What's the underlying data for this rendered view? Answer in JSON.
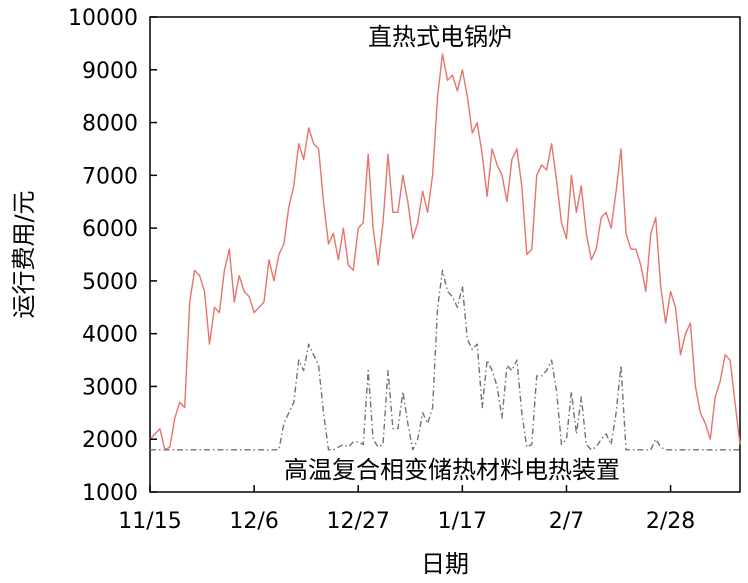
{
  "chart_data": {
    "type": "line",
    "xlabel": "日期",
    "ylabel": "运行费用/元",
    "ylim": [
      1000,
      10000
    ],
    "yticks": [
      1000,
      2000,
      3000,
      4000,
      5000,
      6000,
      7000,
      8000,
      9000,
      10000
    ],
    "xticks": [
      {
        "day": 0,
        "label": "11/15"
      },
      {
        "day": 21,
        "label": "12/6"
      },
      {
        "day": 42,
        "label": "12/27"
      },
      {
        "day": 63,
        "label": "1/17"
      },
      {
        "day": 84,
        "label": "2/7"
      },
      {
        "day": 105,
        "label": "2/28"
      }
    ],
    "xlim": [
      0,
      119
    ],
    "grid": false,
    "annotations": [
      {
        "text": "直热式电锅炉",
        "series": 0
      },
      {
        "text": "高温复合相变储热材料电热装置",
        "series": 1
      }
    ],
    "series": [
      {
        "name": "直热式电锅炉",
        "color": "#e8736c",
        "dash": "solid",
        "x": [
          0,
          1,
          2,
          3,
          4,
          5,
          6,
          7,
          8,
          9,
          10,
          11,
          12,
          13,
          14,
          15,
          16,
          17,
          18,
          19,
          20,
          21,
          22,
          23,
          24,
          25,
          26,
          27,
          28,
          29,
          30,
          31,
          32,
          33,
          34,
          35,
          36,
          37,
          38,
          39,
          40,
          41,
          42,
          43,
          44,
          45,
          46,
          47,
          48,
          49,
          50,
          51,
          52,
          53,
          54,
          55,
          56,
          57,
          58,
          59,
          60,
          61,
          62,
          63,
          64,
          65,
          66,
          67,
          68,
          69,
          70,
          71,
          72,
          73,
          74,
          75,
          76,
          77,
          78,
          79,
          80,
          81,
          82,
          83,
          84,
          85,
          86,
          87,
          88,
          89,
          90,
          91,
          92,
          93,
          94,
          95,
          96,
          97,
          98,
          99,
          100,
          101,
          102,
          103,
          104,
          105,
          106,
          107,
          108,
          109,
          110,
          111,
          112,
          113,
          114,
          115,
          116,
          117,
          118,
          119
        ],
        "values": [
          2000,
          2100,
          2200,
          1800,
          1850,
          2400,
          2700,
          2600,
          4600,
          5200,
          5100,
          4800,
          3800,
          4500,
          4400,
          5200,
          5600,
          4600,
          5100,
          4800,
          4700,
          4400,
          4500,
          4600,
          5400,
          5000,
          5500,
          5700,
          6400,
          6800,
          7600,
          7300,
          7900,
          7600,
          7500,
          6500,
          5700,
          5900,
          5400,
          6000,
          5300,
          5200,
          6000,
          6100,
          7400,
          6000,
          5300,
          6100,
          7400,
          6300,
          6300,
          7000,
          6500,
          5800,
          6100,
          6700,
          6300,
          7000,
          8500,
          9300,
          8800,
          8900,
          8600,
          9000,
          8500,
          7800,
          8000,
          7400,
          6600,
          7500,
          7200,
          7000,
          6500,
          7300,
          7500,
          6800,
          5500,
          5600,
          7000,
          7200,
          7100,
          7600,
          6900,
          6100,
          5800,
          7000,
          6300,
          6800,
          5900,
          5400,
          5600,
          6200,
          6300,
          6000,
          6700,
          7500,
          5900,
          5600,
          5600,
          5300,
          4800,
          5900,
          6200,
          4900,
          4200,
          4800,
          4500,
          3600,
          4000,
          4200,
          3000,
          2500,
          2300,
          2000,
          2800,
          3100,
          3600,
          3500,
          2700,
          1900
        ]
      },
      {
        "name": "高温复合相变储热材料电热装置",
        "color": "#7a6e6e",
        "dash": "dashdot",
        "x": [
          0,
          1,
          2,
          3,
          4,
          5,
          6,
          7,
          8,
          9,
          10,
          11,
          12,
          13,
          14,
          15,
          16,
          17,
          18,
          19,
          20,
          21,
          22,
          23,
          24,
          25,
          26,
          27,
          28,
          29,
          30,
          31,
          32,
          33,
          34,
          35,
          36,
          37,
          38,
          39,
          40,
          41,
          42,
          43,
          44,
          45,
          46,
          47,
          48,
          49,
          50,
          51,
          52,
          53,
          54,
          55,
          56,
          57,
          58,
          59,
          60,
          61,
          62,
          63,
          64,
          65,
          66,
          67,
          68,
          69,
          70,
          71,
          72,
          73,
          74,
          75,
          76,
          77,
          78,
          79,
          80,
          81,
          82,
          83,
          84,
          85,
          86,
          87,
          88,
          89,
          90,
          91,
          92,
          93,
          94,
          95,
          96,
          97,
          98,
          99,
          100,
          101,
          102,
          103,
          104,
          105,
          106,
          107,
          108,
          109,
          110,
          111,
          112,
          113,
          114,
          115,
          116,
          117,
          118,
          119
        ],
        "values": [
          1800,
          1800,
          1800,
          1800,
          1800,
          1800,
          1800,
          1800,
          1800,
          1800,
          1800,
          1800,
          1800,
          1800,
          1800,
          1800,
          1800,
          1800,
          1800,
          1800,
          1800,
          1800,
          1800,
          1800,
          1800,
          1800,
          1800,
          2300,
          2500,
          2700,
          3500,
          3300,
          3800,
          3600,
          3400,
          2500,
          1800,
          1800,
          1850,
          1900,
          1850,
          1950,
          1950,
          1900,
          3300,
          2000,
          1850,
          1900,
          3300,
          2200,
          2200,
          2900,
          2300,
          1800,
          2000,
          2500,
          2300,
          2600,
          4500,
          5200,
          4800,
          4700,
          4500,
          4900,
          3900,
          3700,
          3800,
          2600,
          3500,
          3300,
          3000,
          2400,
          3400,
          3300,
          3500,
          2500,
          1850,
          1900,
          3200,
          3200,
          3300,
          3500,
          2900,
          1900,
          2000,
          2900,
          2100,
          2800,
          1900,
          1800,
          1850,
          2000,
          2100,
          1900,
          2500,
          3400,
          1800,
          1800,
          1800,
          1800,
          1800,
          1800,
          2000,
          1850,
          1800,
          1800,
          1800,
          1800,
          1800,
          1800,
          1800,
          1800,
          1800,
          1800,
          1800,
          1800,
          1800,
          1800,
          1800,
          1800
        ]
      }
    ]
  }
}
